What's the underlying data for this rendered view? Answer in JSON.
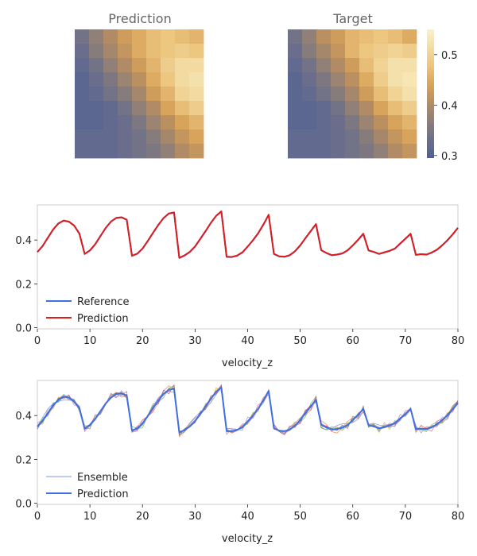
{
  "colors": {
    "colormap": [
      "#4f5f94",
      "#6b6f8c",
      "#8e7f78",
      "#b48d62",
      "#d9a35a",
      "#ecc47d",
      "#f3dca4",
      "#fbf1c8"
    ],
    "reference": "#3f6fe0",
    "prediction_line": "#dd1c1c",
    "prediction_blue": "#3f6fe0",
    "ensemble": [
      "#5b7de8",
      "#e07b3a",
      "#59a84a",
      "#d04fa0",
      "#9a7ad0",
      "#c8b030",
      "#48b8c8",
      "#b85050"
    ],
    "axes_spine": "#cccccc"
  },
  "chart_data": [
    {
      "type": "heatmap",
      "title": "Prediction",
      "grid": [
        [
          0.34,
          0.37,
          0.4,
          0.43,
          0.45,
          0.47,
          0.48,
          0.47,
          0.46
        ],
        [
          0.33,
          0.36,
          0.39,
          0.42,
          0.45,
          0.47,
          0.48,
          0.49,
          0.48
        ],
        [
          0.32,
          0.34,
          0.37,
          0.4,
          0.43,
          0.46,
          0.49,
          0.51,
          0.51
        ],
        [
          0.31,
          0.33,
          0.35,
          0.38,
          0.41,
          0.45,
          0.48,
          0.51,
          0.52
        ],
        [
          0.31,
          0.32,
          0.34,
          0.36,
          0.39,
          0.43,
          0.46,
          0.5,
          0.51
        ],
        [
          0.31,
          0.31,
          0.32,
          0.34,
          0.37,
          0.4,
          0.44,
          0.47,
          0.49
        ],
        [
          0.31,
          0.31,
          0.32,
          0.33,
          0.35,
          0.38,
          0.41,
          0.44,
          0.46
        ],
        [
          0.32,
          0.32,
          0.32,
          0.33,
          0.34,
          0.36,
          0.39,
          0.42,
          0.44
        ],
        [
          0.32,
          0.32,
          0.32,
          0.33,
          0.34,
          0.35,
          0.37,
          0.4,
          0.42
        ]
      ]
    },
    {
      "type": "heatmap",
      "title": "Target",
      "colorbar": {
        "ticks": [
          "0.3",
          "0.4",
          "0.5"
        ],
        "tick_values": [
          0.3,
          0.4,
          0.5
        ],
        "range": [
          0.295,
          0.55
        ]
      },
      "grid": [
        [
          0.34,
          0.37,
          0.41,
          0.43,
          0.46,
          0.47,
          0.48,
          0.47,
          0.45
        ],
        [
          0.33,
          0.36,
          0.39,
          0.42,
          0.46,
          0.48,
          0.49,
          0.5,
          0.49
        ],
        [
          0.32,
          0.34,
          0.37,
          0.4,
          0.43,
          0.47,
          0.5,
          0.52,
          0.52
        ],
        [
          0.31,
          0.33,
          0.35,
          0.38,
          0.41,
          0.45,
          0.49,
          0.52,
          0.53
        ],
        [
          0.31,
          0.32,
          0.34,
          0.36,
          0.39,
          0.43,
          0.47,
          0.5,
          0.52
        ],
        [
          0.31,
          0.31,
          0.32,
          0.34,
          0.37,
          0.4,
          0.44,
          0.47,
          0.49
        ],
        [
          0.31,
          0.31,
          0.32,
          0.33,
          0.35,
          0.38,
          0.41,
          0.44,
          0.46
        ],
        [
          0.32,
          0.32,
          0.32,
          0.33,
          0.34,
          0.36,
          0.39,
          0.42,
          0.44
        ],
        [
          0.32,
          0.32,
          0.32,
          0.33,
          0.34,
          0.35,
          0.37,
          0.4,
          0.42
        ]
      ]
    },
    {
      "type": "line",
      "xlabel": "velocity_z",
      "xlim": [
        0,
        80
      ],
      "ylim": [
        -0.005,
        0.56
      ],
      "xticks": [
        "0",
        "10",
        "20",
        "30",
        "40",
        "50",
        "60",
        "70",
        "80"
      ],
      "yticks": [
        "0.0",
        "0.2",
        "0.4"
      ],
      "ytick_values": [
        0.0,
        0.2,
        0.4
      ],
      "legend_position": "lower-left",
      "legend": [
        "Reference",
        "Prediction"
      ],
      "series": [
        {
          "name": "Reference",
          "x": [
            0,
            1,
            2,
            3,
            4,
            5,
            6,
            7,
            8,
            9,
            10,
            11,
            12,
            13,
            14,
            15,
            16,
            17,
            18,
            19,
            20,
            21,
            22,
            23,
            24,
            25,
            26,
            27,
            28,
            29,
            30,
            31,
            32,
            33,
            34,
            35,
            36,
            37,
            38,
            39,
            40,
            41,
            42,
            43,
            44,
            45,
            46,
            47,
            48,
            49,
            50,
            51,
            52,
            53,
            54,
            55,
            56,
            57,
            58,
            59,
            60,
            61,
            62,
            63,
            64,
            65,
            66,
            67,
            68,
            69,
            70,
            71,
            72,
            73,
            74,
            75,
            76,
            77,
            78,
            79,
            80
          ],
          "y": [
            0.345,
            0.372,
            0.41,
            0.448,
            0.476,
            0.488,
            0.483,
            0.465,
            0.43,
            0.336,
            0.352,
            0.38,
            0.418,
            0.455,
            0.484,
            0.5,
            0.503,
            0.492,
            0.328,
            0.337,
            0.36,
            0.395,
            0.432,
            0.468,
            0.5,
            0.52,
            0.525,
            0.318,
            0.329,
            0.345,
            0.37,
            0.405,
            0.44,
            0.478,
            0.51,
            0.53,
            0.323,
            0.322,
            0.328,
            0.343,
            0.37,
            0.398,
            0.43,
            0.47,
            0.515,
            0.336,
            0.325,
            0.323,
            0.33,
            0.348,
            0.375,
            0.408,
            0.44,
            0.472,
            0.353,
            0.34,
            0.33,
            0.333,
            0.338,
            0.352,
            0.375,
            0.4,
            0.428,
            0.352,
            0.345,
            0.336,
            0.343,
            0.35,
            0.36,
            0.383,
            0.405,
            0.428,
            0.332,
            0.335,
            0.333,
            0.342,
            0.355,
            0.375,
            0.398,
            0.425,
            0.455
          ]
        },
        {
          "name": "Prediction",
          "x": [
            0,
            1,
            2,
            3,
            4,
            5,
            6,
            7,
            8,
            9,
            10,
            11,
            12,
            13,
            14,
            15,
            16,
            17,
            18,
            19,
            20,
            21,
            22,
            23,
            24,
            25,
            26,
            27,
            28,
            29,
            30,
            31,
            32,
            33,
            34,
            35,
            36,
            37,
            38,
            39,
            40,
            41,
            42,
            43,
            44,
            45,
            46,
            47,
            48,
            49,
            50,
            51,
            52,
            53,
            54,
            55,
            56,
            57,
            58,
            59,
            60,
            61,
            62,
            63,
            64,
            65,
            66,
            67,
            68,
            69,
            70,
            71,
            72,
            73,
            74,
            75,
            76,
            77,
            78,
            79,
            80
          ],
          "y": [
            0.345,
            0.373,
            0.411,
            0.448,
            0.475,
            0.489,
            0.484,
            0.466,
            0.428,
            0.337,
            0.353,
            0.381,
            0.418,
            0.455,
            0.484,
            0.501,
            0.504,
            0.493,
            0.328,
            0.338,
            0.361,
            0.396,
            0.433,
            0.469,
            0.5,
            0.521,
            0.526,
            0.319,
            0.33,
            0.346,
            0.371,
            0.406,
            0.441,
            0.478,
            0.51,
            0.531,
            0.324,
            0.323,
            0.329,
            0.344,
            0.37,
            0.399,
            0.431,
            0.471,
            0.515,
            0.337,
            0.326,
            0.324,
            0.331,
            0.349,
            0.376,
            0.409,
            0.441,
            0.473,
            0.354,
            0.341,
            0.331,
            0.334,
            0.339,
            0.353,
            0.376,
            0.401,
            0.429,
            0.353,
            0.346,
            0.337,
            0.344,
            0.351,
            0.361,
            0.384,
            0.406,
            0.429,
            0.333,
            0.336,
            0.334,
            0.343,
            0.356,
            0.376,
            0.399,
            0.426,
            0.456
          ]
        }
      ]
    },
    {
      "type": "line",
      "xlabel": "velocity_z",
      "xlim": [
        0,
        80
      ],
      "ylim": [
        -0.005,
        0.56
      ],
      "xticks": [
        "0",
        "10",
        "20",
        "30",
        "40",
        "50",
        "60",
        "70",
        "80"
      ],
      "yticks": [
        "0.0",
        "0.2",
        "0.4"
      ],
      "ytick_values": [
        0.0,
        0.2,
        0.4
      ],
      "legend_position": "lower-left",
      "legend": [
        "Ensemble",
        "Prediction"
      ],
      "ensemble_members": 8,
      "ensemble_spread": 0.02,
      "series": [
        {
          "name": "Prediction",
          "x": [
            0,
            1,
            2,
            3,
            4,
            5,
            6,
            7,
            8,
            9,
            10,
            11,
            12,
            13,
            14,
            15,
            16,
            17,
            18,
            19,
            20,
            21,
            22,
            23,
            24,
            25,
            26,
            27,
            28,
            29,
            30,
            31,
            32,
            33,
            34,
            35,
            36,
            37,
            38,
            39,
            40,
            41,
            42,
            43,
            44,
            45,
            46,
            47,
            48,
            49,
            50,
            51,
            52,
            53,
            54,
            55,
            56,
            57,
            58,
            59,
            60,
            61,
            62,
            63,
            64,
            65,
            66,
            67,
            68,
            69,
            70,
            71,
            72,
            73,
            74,
            75,
            76,
            77,
            78,
            79,
            80
          ],
          "y": [
            0.35,
            0.376,
            0.412,
            0.446,
            0.472,
            0.486,
            0.482,
            0.465,
            0.432,
            0.34,
            0.356,
            0.384,
            0.42,
            0.455,
            0.482,
            0.498,
            0.501,
            0.49,
            0.332,
            0.341,
            0.364,
            0.398,
            0.434,
            0.468,
            0.498,
            0.518,
            0.523,
            0.323,
            0.334,
            0.35,
            0.374,
            0.408,
            0.442,
            0.477,
            0.508,
            0.528,
            0.33,
            0.328,
            0.334,
            0.348,
            0.373,
            0.4,
            0.431,
            0.47,
            0.512,
            0.342,
            0.331,
            0.329,
            0.336,
            0.353,
            0.379,
            0.411,
            0.442,
            0.472,
            0.358,
            0.346,
            0.337,
            0.339,
            0.344,
            0.357,
            0.379,
            0.403,
            0.43,
            0.357,
            0.35,
            0.342,
            0.348,
            0.355,
            0.365,
            0.386,
            0.407,
            0.43,
            0.338,
            0.34,
            0.338,
            0.347,
            0.36,
            0.379,
            0.401,
            0.428,
            0.457
          ]
        }
      ]
    }
  ]
}
